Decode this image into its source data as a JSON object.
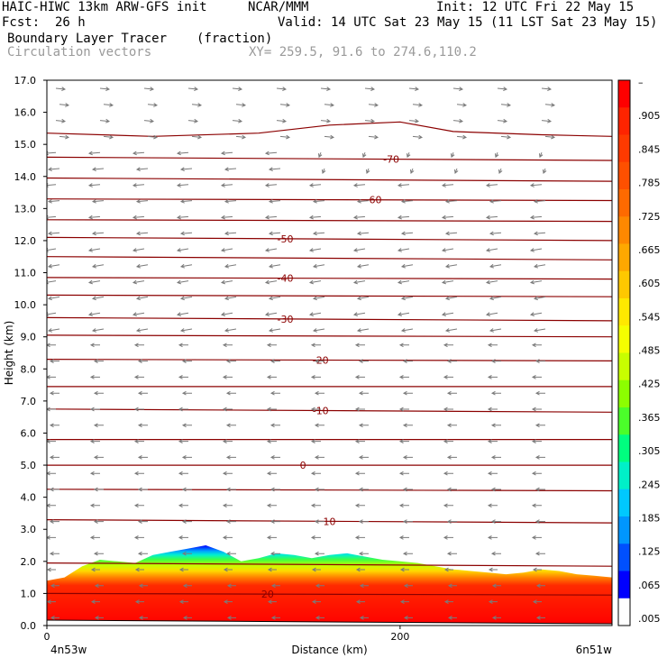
{
  "header": {
    "model": "HAIC-HIWC 13km ARW-GFS init",
    "org": "NCAR/MMM",
    "init": "Init: 12 UTC Fri 22 May 15",
    "fcst_label": "Fcst:",
    "fcst_value": "26 h",
    "valid": "Valid: 14 UTC Sat 23 May 15 (11 LST Sat 23 May 15)",
    "field": "Boundary Layer Tracer",
    "units": "(fraction)",
    "overlay": "Circulation vectors",
    "xy": "XY= 259.5, 91.6 to 274.6,110.2"
  },
  "chart_data": {
    "type": "heatmap",
    "title": "Boundary Layer Tracer",
    "xlabel": "Distance (km)",
    "ylabel": "Height (km)",
    "xlim": [
      0,
      320
    ],
    "ylim": [
      0.0,
      17.0
    ],
    "x_ticks": [
      {
        "value": 0,
        "label": "0"
      },
      {
        "value": 200,
        "label": "200"
      }
    ],
    "x_endpoints": {
      "left": "4n53w",
      "right": "6n51w"
    },
    "y_ticks": [
      "0.0",
      "1.0",
      "2.0",
      "3.0",
      "4.0",
      "5.0",
      "6.0",
      "7.0",
      "8.0",
      "9.0",
      "10.0",
      "11.0",
      "12.0",
      "13.0",
      "14.0",
      "15.0",
      "16.0",
      "17.0"
    ],
    "colorbar": {
      "labels": [
        "–",
        ".905",
        ".845",
        ".785",
        ".725",
        ".665",
        ".605",
        ".545",
        ".485",
        ".425",
        ".365",
        ".305",
        ".245",
        ".185",
        ".125",
        ".065",
        ".005"
      ],
      "colors": [
        "#ff0000",
        "#ff2400",
        "#ff3a00",
        "#ff5000",
        "#ff6a00",
        "#ff8800",
        "#ffa800",
        "#ffc800",
        "#ffe800",
        "#f5ff00",
        "#c8ff00",
        "#8cff00",
        "#4bff2a",
        "#00ff7f",
        "#00f0c8",
        "#00c8ff",
        "#0096ff",
        "#0050ff",
        "#0000ff",
        "#ffffff"
      ]
    },
    "tracer_top_km": [
      [
        0,
        1.4
      ],
      [
        10,
        1.5
      ],
      [
        20,
        1.85
      ],
      [
        30,
        2.05
      ],
      [
        40,
        2.0
      ],
      [
        50,
        1.95
      ],
      [
        60,
        2.2
      ],
      [
        70,
        2.3
      ],
      [
        80,
        2.4
      ],
      [
        90,
        2.5
      ],
      [
        100,
        2.3
      ],
      [
        110,
        2.0
      ],
      [
        120,
        2.1
      ],
      [
        130,
        2.25
      ],
      [
        140,
        2.2
      ],
      [
        150,
        2.1
      ],
      [
        160,
        2.2
      ],
      [
        170,
        2.25
      ],
      [
        180,
        2.15
      ],
      [
        190,
        2.05
      ],
      [
        200,
        2.0
      ],
      [
        210,
        1.95
      ],
      [
        220,
        1.85
      ],
      [
        230,
        1.75
      ],
      [
        240,
        1.7
      ],
      [
        250,
        1.65
      ],
      [
        260,
        1.6
      ],
      [
        270,
        1.65
      ],
      [
        280,
        1.75
      ],
      [
        290,
        1.7
      ],
      [
        300,
        1.6
      ],
      [
        310,
        1.55
      ],
      [
        320,
        1.5
      ]
    ],
    "contours": [
      {
        "label": "20",
        "label_x": 125,
        "points": [
          [
            0,
            1.0
          ],
          [
            320,
            0.95
          ]
        ]
      },
      {
        "label": "10",
        "label_x": 160,
        "points": [
          [
            0,
            3.3
          ],
          [
            320,
            3.2
          ]
        ]
      },
      {
        "label": "0",
        "label_x": 145,
        "points": [
          [
            0,
            5.0
          ],
          [
            320,
            5.0
          ]
        ]
      },
      {
        "label": "-10",
        "label_x": 155,
        "points": [
          [
            0,
            6.75
          ],
          [
            320,
            6.65
          ]
        ]
      },
      {
        "label": "-20",
        "label_x": 155,
        "points": [
          [
            0,
            8.3
          ],
          [
            320,
            8.25
          ]
        ]
      },
      {
        "label": "-30",
        "label_x": 135,
        "points": [
          [
            0,
            9.6
          ],
          [
            320,
            9.5
          ]
        ]
      },
      {
        "label": "-40",
        "label_x": 135,
        "points": [
          [
            0,
            10.85
          ],
          [
            320,
            10.8
          ]
        ]
      },
      {
        "label": "-50",
        "label_x": 135,
        "points": [
          [
            0,
            12.1
          ],
          [
            320,
            12.0
          ]
        ]
      },
      {
        "label": "-60",
        "label_x": 185,
        "points": [
          [
            0,
            13.3
          ],
          [
            320,
            13.25
          ]
        ]
      },
      {
        "label": "-70",
        "label_x": 195,
        "points": [
          [
            0,
            14.6
          ],
          [
            320,
            14.5
          ]
        ]
      },
      {
        "label": "",
        "points": [
          [
            0,
            1.95
          ],
          [
            320,
            1.85
          ]
        ]
      },
      {
        "label": "",
        "points": [
          [
            0,
            4.25
          ],
          [
            320,
            4.2
          ]
        ]
      },
      {
        "label": "",
        "points": [
          [
            0,
            5.8
          ],
          [
            320,
            5.8
          ]
        ]
      },
      {
        "label": "",
        "points": [
          [
            0,
            7.45
          ],
          [
            320,
            7.45
          ]
        ]
      },
      {
        "label": "",
        "points": [
          [
            0,
            9.05
          ],
          [
            320,
            9.0
          ]
        ]
      },
      {
        "label": "",
        "points": [
          [
            0,
            10.3
          ],
          [
            320,
            10.25
          ]
        ]
      },
      {
        "label": "",
        "points": [
          [
            0,
            11.5
          ],
          [
            320,
            11.4
          ]
        ]
      },
      {
        "label": "",
        "points": [
          [
            0,
            12.65
          ],
          [
            320,
            12.6
          ]
        ]
      },
      {
        "label": "",
        "points": [
          [
            0,
            13.95
          ],
          [
            320,
            13.85
          ]
        ]
      },
      {
        "label": "",
        "points": [
          [
            0,
            15.35
          ],
          [
            60,
            15.25
          ],
          [
            120,
            15.35
          ],
          [
            160,
            15.6
          ],
          [
            200,
            15.7
          ],
          [
            230,
            15.4
          ],
          [
            280,
            15.3
          ],
          [
            320,
            15.25
          ]
        ]
      }
    ]
  }
}
